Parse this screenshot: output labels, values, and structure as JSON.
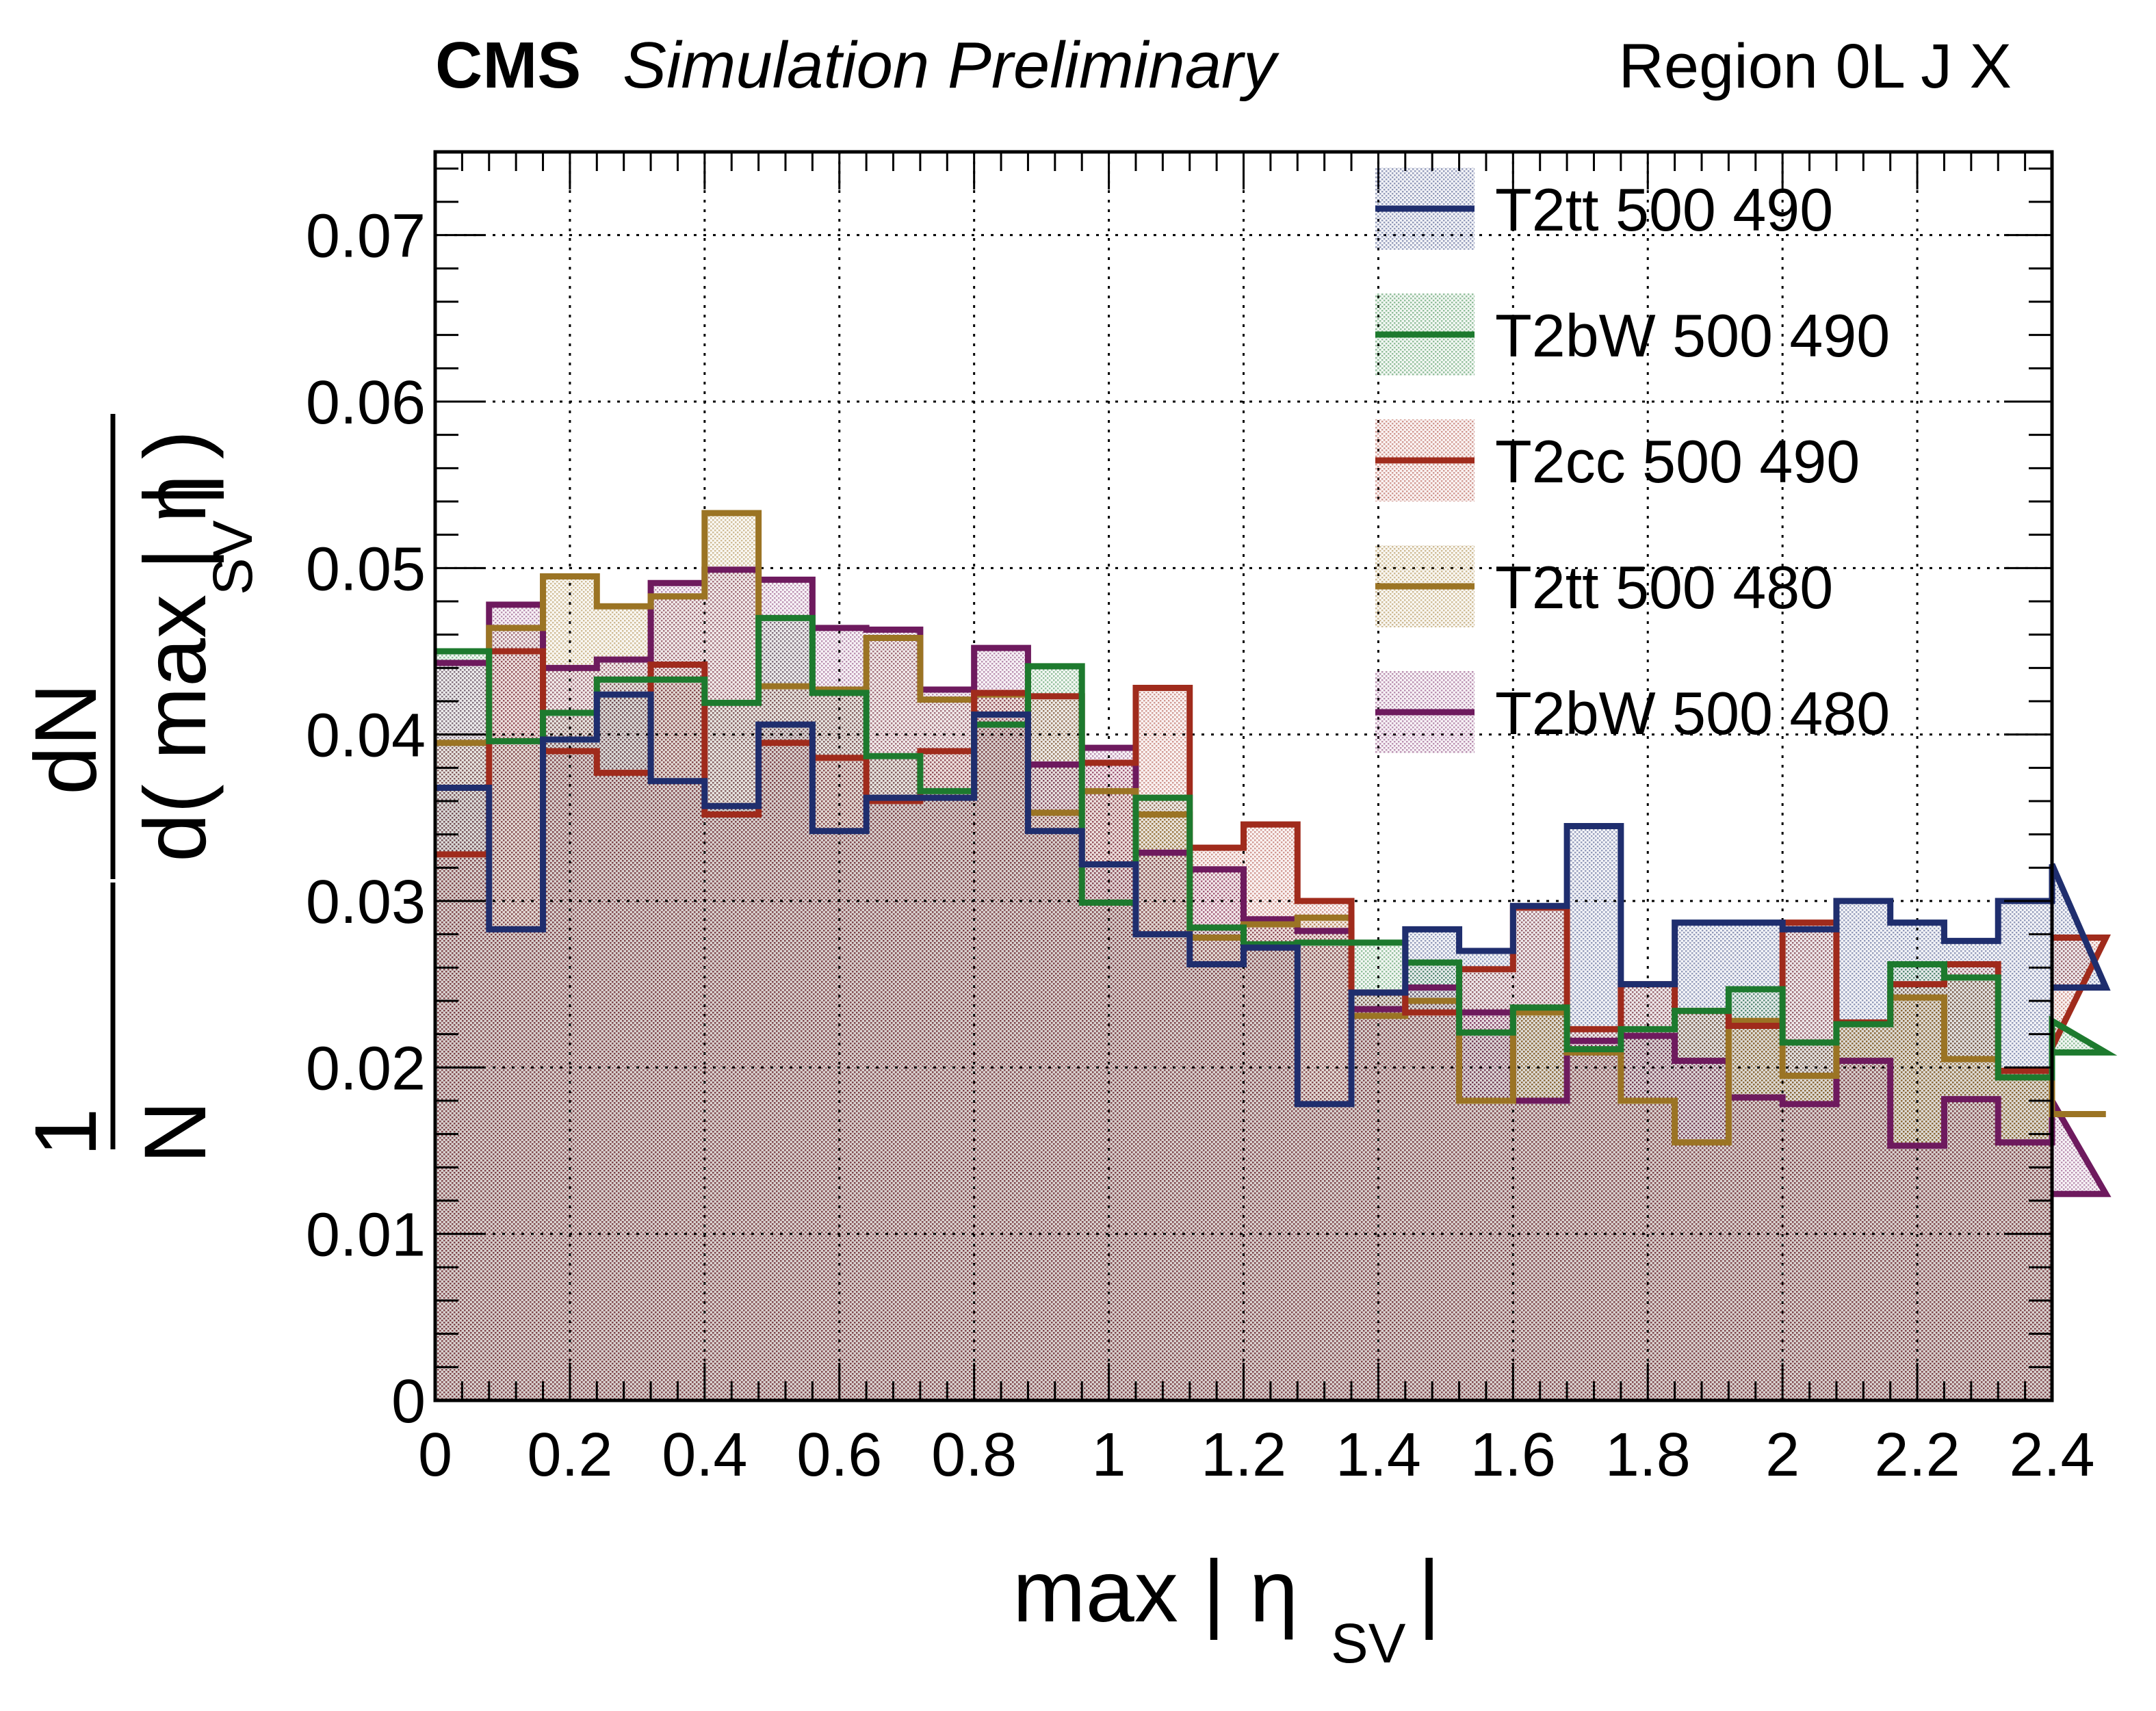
{
  "header": {
    "experiment": "CMS",
    "status": "Simulation Preliminary",
    "region": "Region 0L J X"
  },
  "chart_data": {
    "type": "histogram-step",
    "xlabel": "max | η_SV |",
    "ylabel": "1/N dN/d( max | η_SV | )",
    "xlabel_main": "max | η",
    "xlabel_sub": "SV",
    "xlabel_end": " |",
    "ylabel_num": "1",
    "ylabel_N": "N",
    "ylabel_dN": "dN",
    "ylabel_den_main": "d( max | η",
    "ylabel_den_sub": "SV",
    "ylabel_den_end": " | )",
    "xlim": [
      0,
      2.4
    ],
    "ylim": [
      0,
      0.075
    ],
    "grid": true,
    "legend_position": "top-right",
    "x_ticks": [
      "0",
      "0.2",
      "0.4",
      "0.6",
      "0.8",
      "1",
      "1.2",
      "1.4",
      "1.6",
      "1.8",
      "2",
      "2.2",
      "2.4"
    ],
    "y_ticks": [
      "0",
      "0.01",
      "0.02",
      "0.03",
      "0.04",
      "0.05",
      "0.06",
      "0.07"
    ],
    "bin_width": 0.08,
    "series": [
      {
        "name": "T2tt 500 490",
        "color": "#1f2e6e",
        "values": [
          0.0368,
          0.0283,
          0.0397,
          0.0424,
          0.0372,
          0.0357,
          0.0406,
          0.0342,
          0.0362,
          0.0362,
          0.0412,
          0.0342,
          0.0322,
          0.028,
          0.0262,
          0.0272,
          0.0178,
          0.0245,
          0.0283,
          0.027,
          0.0297,
          0.0345,
          0.025,
          0.0287,
          0.0287,
          0.0283,
          0.03,
          0.0287,
          0.0276,
          0.03,
          0.0322,
          0.0248
        ]
      },
      {
        "name": "T2bW 500 490",
        "color": "#1d7a2e",
        "values": [
          0.045,
          0.0396,
          0.0413,
          0.0433,
          0.0433,
          0.0419,
          0.047,
          0.0425,
          0.0387,
          0.0366,
          0.0406,
          0.0441,
          0.0299,
          0.0362,
          0.0284,
          0.0274,
          0.0275,
          0.0275,
          0.0263,
          0.0221,
          0.0236,
          0.0211,
          0.0223,
          0.0234,
          0.0247,
          0.0215,
          0.0226,
          0.0262,
          0.0254,
          0.0194,
          0.0228,
          0.0209
        ]
      },
      {
        "name": "T2cc 500 490",
        "color": "#a02b1c",
        "values": [
          0.0328,
          0.045,
          0.039,
          0.0377,
          0.0442,
          0.0352,
          0.0395,
          0.0386,
          0.036,
          0.039,
          0.0425,
          0.0423,
          0.0383,
          0.0428,
          0.0332,
          0.0346,
          0.03,
          0.0245,
          0.0233,
          0.0259,
          0.0296,
          0.0223,
          0.025,
          0.0234,
          0.0225,
          0.0287,
          0.0227,
          0.025,
          0.0262,
          0.0198,
          0.0212,
          0.0278
        ]
      },
      {
        "name": "T2tt 500 480",
        "color": "#9b7424",
        "values": [
          0.0395,
          0.0464,
          0.0495,
          0.0477,
          0.0483,
          0.0533,
          0.0429,
          0.0427,
          0.0458,
          0.0421,
          0.0424,
          0.0353,
          0.0366,
          0.0352,
          0.0278,
          0.0286,
          0.029,
          0.0231,
          0.024,
          0.018,
          0.0233,
          0.0209,
          0.018,
          0.0155,
          0.0228,
          0.0195,
          0.0227,
          0.0242,
          0.0205,
          0.0194,
          0.0172,
          0.0172
        ]
      },
      {
        "name": "T2bW 500 480",
        "color": "#6e1a5e",
        "values": [
          0.0443,
          0.0478,
          0.044,
          0.0445,
          0.0491,
          0.0499,
          0.0493,
          0.0464,
          0.0463,
          0.0427,
          0.0452,
          0.0382,
          0.0392,
          0.0329,
          0.0319,
          0.0289,
          0.0282,
          0.0235,
          0.0248,
          0.0233,
          0.018,
          0.0216,
          0.0219,
          0.0204,
          0.0182,
          0.0178,
          0.0204,
          0.0153,
          0.0181,
          0.0155,
          0.018,
          0.0124
        ]
      }
    ]
  }
}
